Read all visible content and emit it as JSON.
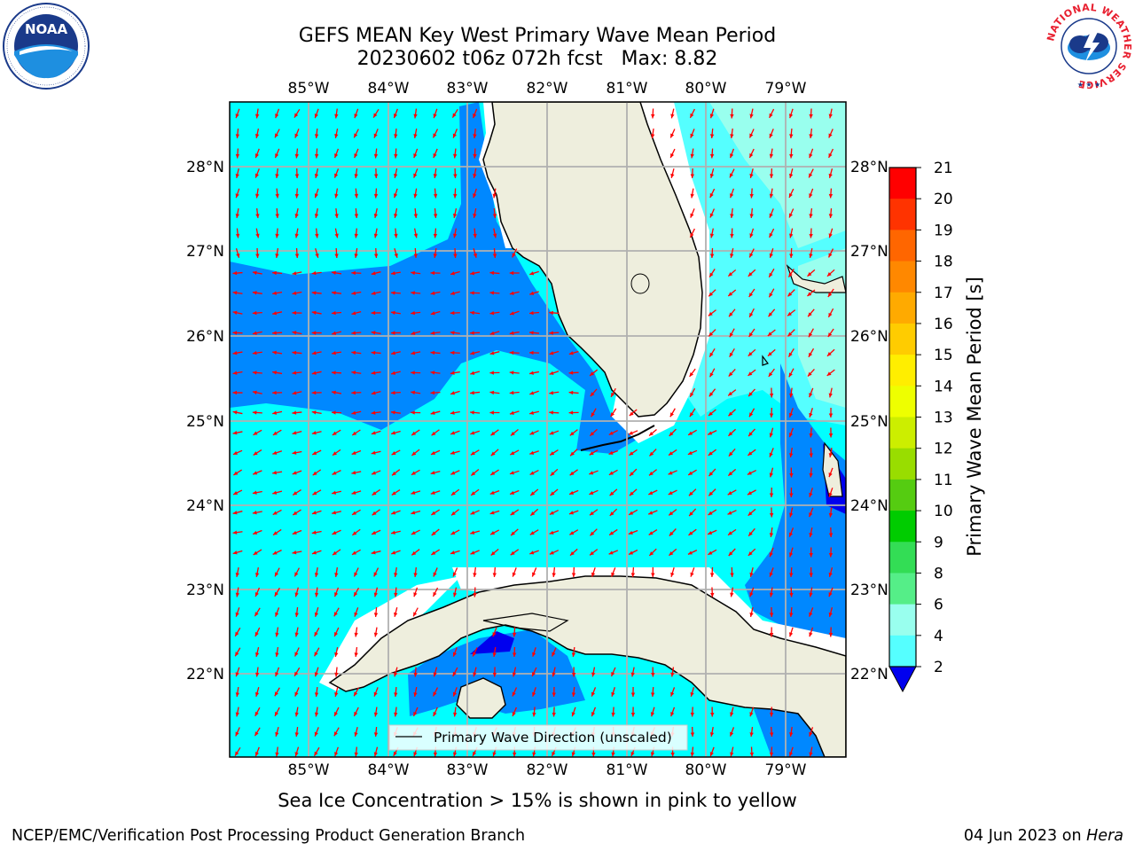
{
  "title_line1": "GEFS MEAN Key West Primary Wave Mean Period",
  "title_line2": "20230602 t06z 072h fcst   Max: 8.82",
  "logos": {
    "left": {
      "name": "noaa-logo",
      "text": "NOAA",
      "ring_text": "NATIONAL OCEANIC AND ATMOSPHERIC ADMINISTRATION · U.S. DEPARTMENT OF COMMERCE"
    },
    "right": {
      "name": "nws-logo",
      "ring_text": "NATIONAL WEATHER SERVICE"
    }
  },
  "map": {
    "lon_labels": [
      "85°W",
      "84°W",
      "83°W",
      "82°W",
      "81°W",
      "80°W",
      "79°W"
    ],
    "lat_labels": [
      "28°N",
      "27°N",
      "26°N",
      "25°N",
      "24°N",
      "23°N",
      "22°N"
    ],
    "legend_label": "Primary Wave Direction (unscaled)",
    "colors": {
      "land": "#eeeedd",
      "coast": "#000000",
      "grid": "#b0b0b0",
      "arrow": "#ff0000"
    }
  },
  "colorbar": {
    "label": "Primary Wave Mean Period [s]",
    "ticks": [
      "21",
      "20",
      "19",
      "18",
      "17",
      "16",
      "15",
      "14",
      "13",
      "12",
      "11",
      "10",
      "9",
      "8",
      "6",
      "4",
      "2"
    ],
    "colors": [
      "#ff0000",
      "#ff3300",
      "#ff6600",
      "#ff8800",
      "#ffaa00",
      "#ffcc00",
      "#ffee00",
      "#eeff00",
      "#ccee00",
      "#99dd00",
      "#55cc11",
      "#00cc00",
      "#33dd55",
      "#55ee88",
      "#99ffee",
      "#55ffff",
      "#00ffff",
      "#0088ff",
      "#0000ee"
    ]
  },
  "footer": {
    "caption": "Sea Ice Concentration > 15% is shown in pink to yellow",
    "left": "NCEP/EMC/Verification Post Processing Product Generation Branch",
    "right_date": "04 Jun 2023 on",
    "right_host": "Hera"
  }
}
